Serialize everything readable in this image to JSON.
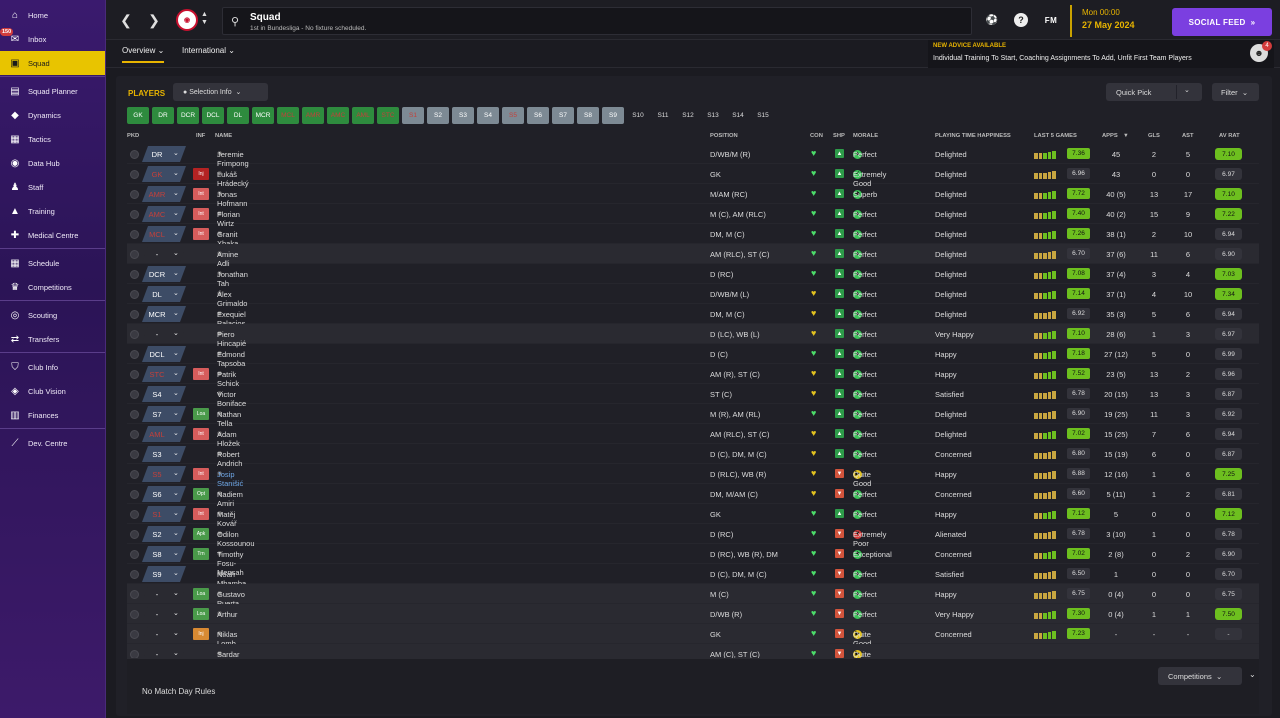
{
  "sidebar": {
    "items": [
      {
        "label": "Home",
        "icon": "home-icon"
      },
      {
        "label": "Inbox",
        "icon": "inbox-icon",
        "badge": "150"
      },
      {
        "label": "Squad",
        "icon": "shirt-icon",
        "active": true
      },
      {
        "label": "Squad Planner",
        "icon": "planner-icon"
      },
      {
        "label": "Dynamics",
        "icon": "dynamics-icon"
      },
      {
        "label": "Tactics",
        "icon": "tactics-icon"
      },
      {
        "label": "Data Hub",
        "icon": "datahub-icon"
      },
      {
        "label": "Staff",
        "icon": "staff-icon"
      },
      {
        "label": "Training",
        "icon": "training-icon"
      },
      {
        "label": "Medical Centre",
        "icon": "medical-icon"
      },
      {
        "label": "Schedule",
        "icon": "calendar-icon"
      },
      {
        "label": "Competitions",
        "icon": "trophy-icon"
      },
      {
        "label": "Scouting",
        "icon": "scouting-icon"
      },
      {
        "label": "Transfers",
        "icon": "transfers-icon"
      },
      {
        "label": "Club Info",
        "icon": "shield-icon"
      },
      {
        "label": "Club Vision",
        "icon": "vision-icon"
      },
      {
        "label": "Finances",
        "icon": "finances-icon"
      },
      {
        "label": "Dev. Centre",
        "icon": "dev-icon"
      }
    ]
  },
  "header": {
    "title": "Squad",
    "subtitle": "1st in Bundesliga - No fixture scheduled.",
    "fm_logo": "FM",
    "date_day": "Mon 00:00",
    "date_full": "27 May 2024",
    "social_feed": "SOCIAL FEED"
  },
  "subnav": {
    "tabs": [
      "Overview",
      "International"
    ],
    "advice_title": "NEW ADVICE AVAILABLE",
    "advice_text": "Individual Training To Start, Coaching Assignments To Add, Unfit First Team Players",
    "advice_count": "4"
  },
  "panel": {
    "title": "PLAYERS",
    "selection_info": "Selection Info",
    "quick_pick": "Quick Pick",
    "filter": "Filter",
    "positions": [
      {
        "l": "GK",
        "s": "g"
      },
      {
        "l": "DR",
        "s": "g"
      },
      {
        "l": "DCR",
        "s": "g"
      },
      {
        "l": "DCL",
        "s": "g"
      },
      {
        "l": "DL",
        "s": "g"
      },
      {
        "l": "MCR",
        "s": "g"
      },
      {
        "l": "MCL",
        "s": "gr"
      },
      {
        "l": "AMR",
        "s": "gr"
      },
      {
        "l": "AMC",
        "s": "gr"
      },
      {
        "l": "AML",
        "s": "gr"
      },
      {
        "l": "STC",
        "s": "gr"
      },
      {
        "l": "S1",
        "s": "sr"
      },
      {
        "l": "S2",
        "s": "s"
      },
      {
        "l": "S3",
        "s": "s"
      },
      {
        "l": "S4",
        "s": "s"
      },
      {
        "l": "S5",
        "s": "sr"
      },
      {
        "l": "S6",
        "s": "s"
      },
      {
        "l": "S7",
        "s": "s"
      },
      {
        "l": "S8",
        "s": "s"
      },
      {
        "l": "S9",
        "s": "s"
      },
      {
        "l": "S10",
        "s": "n"
      },
      {
        "l": "S11",
        "s": "n"
      },
      {
        "l": "S12",
        "s": "n"
      },
      {
        "l": "S13",
        "s": "n"
      },
      {
        "l": "S14",
        "s": "n"
      },
      {
        "l": "S15",
        "s": "n"
      }
    ],
    "columns": {
      "pkd": "PKD",
      "inf": "INF",
      "name": "NAME",
      "position": "POSITION",
      "con": "CON",
      "shp": "SHP",
      "morale": "MORALE",
      "pth": "PLAYING TIME HAPPINESS",
      "last5": "LAST 5 GAMES",
      "apps": "APPS",
      "gls": "GLS",
      "ast": "AST",
      "avrat": "AV RAT"
    },
    "players": [
      {
        "sel": "DR",
        "inf": "",
        "name": "Jeremie Frimpong",
        "pos": "D/WB/M (R)",
        "morale": "Perfect",
        "pth": "Delighted",
        "l5": "7.36",
        "apps": "45",
        "gls": "2",
        "ast": "5",
        "av": "7.10"
      },
      {
        "sel": "GK",
        "inf": "Inj",
        "name": "Lukáš Hrádecký",
        "pos": "GK",
        "morale": "Extremely Good",
        "pth": "Delighted",
        "l5": "6.96",
        "apps": "43",
        "gls": "0",
        "ast": "0",
        "av": "6.97"
      },
      {
        "sel": "AMR",
        "inf": "Int",
        "name": "Jonas Hofmann",
        "pos": "M/AM (RC)",
        "morale": "Superb",
        "pth": "Delighted",
        "l5": "7.72",
        "apps": "40 (5)",
        "gls": "13",
        "ast": "17",
        "av": "7.10"
      },
      {
        "sel": "AMC",
        "inf": "Int",
        "name": "Florian Wirtz",
        "pos": "M (C), AM (RLC)",
        "morale": "Perfect",
        "pth": "Delighted",
        "l5": "7.40",
        "apps": "40 (2)",
        "gls": "15",
        "ast": "9",
        "av": "7.22"
      },
      {
        "sel": "MCL",
        "inf": "Int",
        "name": "Granit Xhaka",
        "pos": "DM, M (C)",
        "morale": "Perfect",
        "pth": "Delighted",
        "l5": "7.26",
        "apps": "38 (1)",
        "gls": "2",
        "ast": "10",
        "av": "6.94"
      },
      {
        "sel": "-",
        "inf": "",
        "name": "Amine Adli",
        "pos": "AM (RLC), ST (C)",
        "morale": "Perfect",
        "pth": "Delighted",
        "l5": "6.70",
        "apps": "37 (6)",
        "gls": "11",
        "ast": "6",
        "av": "6.90"
      },
      {
        "sel": "DCR",
        "inf": "",
        "name": "Jonathan Tah",
        "pos": "D (RC)",
        "morale": "Perfect",
        "pth": "Delighted",
        "l5": "7.08",
        "apps": "37 (4)",
        "gls": "3",
        "ast": "4",
        "av": "7.03"
      },
      {
        "sel": "DL",
        "inf": "",
        "name": "Álex Grimaldo",
        "pos": "D/WB/M (L)",
        "morale": "Perfect",
        "pth": "Delighted",
        "l5": "7.14",
        "apps": "37 (1)",
        "gls": "4",
        "ast": "10",
        "av": "7.34"
      },
      {
        "sel": "MCR",
        "inf": "",
        "name": "Exequiel Palacios",
        "pos": "DM, M (C)",
        "morale": "Perfect",
        "pth": "Delighted",
        "l5": "6.92",
        "apps": "35 (3)",
        "gls": "5",
        "ast": "6",
        "av": "6.94"
      },
      {
        "sel": "-",
        "inf": "",
        "name": "Piero Hincapié",
        "pos": "D (LC), WB (L)",
        "morale": "Perfect",
        "pth": "Very Happy",
        "l5": "7.10",
        "apps": "28 (6)",
        "gls": "1",
        "ast": "3",
        "av": "6.97"
      },
      {
        "sel": "DCL",
        "inf": "",
        "name": "Edmond Tapsoba",
        "pos": "D (C)",
        "morale": "Perfect",
        "pth": "Happy",
        "l5": "7.18",
        "apps": "27 (12)",
        "gls": "5",
        "ast": "0",
        "av": "6.99"
      },
      {
        "sel": "STC",
        "inf": "Int",
        "name": "Patrik Schick",
        "pos": "AM (R), ST (C)",
        "morale": "Perfect",
        "pth": "Happy",
        "l5": "7.52",
        "apps": "23 (5)",
        "gls": "13",
        "ast": "2",
        "av": "6.96"
      },
      {
        "sel": "S4",
        "inf": "",
        "name": "Victor Boniface",
        "pos": "ST (C)",
        "morale": "Perfect",
        "pth": "Satisfied",
        "l5": "6.78",
        "apps": "20 (15)",
        "gls": "13",
        "ast": "3",
        "av": "6.87"
      },
      {
        "sel": "S7",
        "inf": "Loa",
        "name": "Nathan Tella",
        "pos": "M (R), AM (RL)",
        "morale": "Perfect",
        "pth": "Delighted",
        "l5": "6.90",
        "apps": "19 (25)",
        "gls": "11",
        "ast": "3",
        "av": "6.92"
      },
      {
        "sel": "AML",
        "inf": "Int",
        "name": "Adam Hložek",
        "pos": "AM (RLC), ST (C)",
        "morale": "Perfect",
        "pth": "Delighted",
        "l5": "7.02",
        "apps": "15 (25)",
        "gls": "7",
        "ast": "6",
        "av": "6.94"
      },
      {
        "sel": "S3",
        "inf": "",
        "name": "Robert Andrich",
        "pos": "D (C), DM, M (C)",
        "morale": "Perfect",
        "pth": "Concerned",
        "l5": "6.80",
        "apps": "15 (19)",
        "gls": "6",
        "ast": "0",
        "av": "6.87"
      },
      {
        "sel": "S5",
        "inf": "Int",
        "name": "Josip Stanišić",
        "pos": "D (RLC), WB (R)",
        "morale": "Quite Good",
        "pth": "Happy",
        "l5": "6.88",
        "apps": "12 (16)",
        "gls": "1",
        "ast": "6",
        "av": "7.25"
      },
      {
        "sel": "S6",
        "inf": "Opt",
        "name": "Nadiem Amiri",
        "pos": "DM, M/AM (C)",
        "morale": "Perfect",
        "pth": "Concerned",
        "l5": "6.60",
        "apps": "5 (11)",
        "gls": "1",
        "ast": "2",
        "av": "6.81"
      },
      {
        "sel": "S1",
        "inf": "Int",
        "name": "Matěj Kovář",
        "pos": "GK",
        "morale": "Perfect",
        "pth": "Happy",
        "l5": "7.12",
        "apps": "5",
        "gls": "0",
        "ast": "0",
        "av": "7.12"
      },
      {
        "sel": "S2",
        "inf": "Apk",
        "name": "Odilon Kossounou",
        "pos": "D (RC)",
        "morale": "Extremely Poor",
        "pth": "Alienated",
        "l5": "6.78",
        "apps": "3 (10)",
        "gls": "1",
        "ast": "0",
        "av": "6.78"
      },
      {
        "sel": "S8",
        "inf": "Trn",
        "name": "Timothy Fosu-Mensah",
        "pos": "D (RC), WB (R), DM",
        "morale": "Exceptional",
        "pth": "Concerned",
        "l5": "7.02",
        "apps": "2 (8)",
        "gls": "0",
        "ast": "2",
        "av": "6.90"
      },
      {
        "sel": "S9",
        "inf": "",
        "name": "Noah Mbamba",
        "pos": "D (C), DM, M (C)",
        "morale": "Perfect",
        "pth": "Satisfied",
        "l5": "6.50",
        "apps": "1",
        "gls": "0",
        "ast": "0",
        "av": "6.70"
      },
      {
        "sel": "-",
        "inf": "Loa",
        "name": "Gustavo Puerta",
        "pos": "M (C)",
        "morale": "Perfect",
        "pth": "Happy",
        "l5": "6.75",
        "apps": "0 (4)",
        "gls": "0",
        "ast": "0",
        "av": "6.75"
      },
      {
        "sel": "-",
        "inf": "Loa",
        "name": "Arthur",
        "pos": "D/WB (R)",
        "morale": "Perfect",
        "pth": "Very Happy",
        "l5": "7.30",
        "apps": "0 (4)",
        "gls": "1",
        "ast": "1",
        "av": "7.50"
      },
      {
        "sel": "-",
        "inf": "Inj",
        "name": "Niklas Lomb",
        "pos": "GK",
        "morale": "Quite Good",
        "pth": "Concerned",
        "l5": "7.23",
        "apps": "-",
        "gls": "-",
        "ast": "-",
        "av": "-"
      },
      {
        "sel": "-",
        "inf": "",
        "name": "Sardar Azmoun",
        "pos": "AM (C), ST (C)",
        "morale": "Quite Good",
        "pth": "",
        "l5": "",
        "apps": "",
        "gls": "",
        "ast": "",
        "av": ""
      }
    ],
    "no_rules": "No Match Day Rules",
    "competitions": "Competitions"
  },
  "colors": {
    "accent": "#e8b400",
    "social": "#7b3fe0",
    "rating_green": "#6dbf1f",
    "sidebar": "#2b1456"
  }
}
